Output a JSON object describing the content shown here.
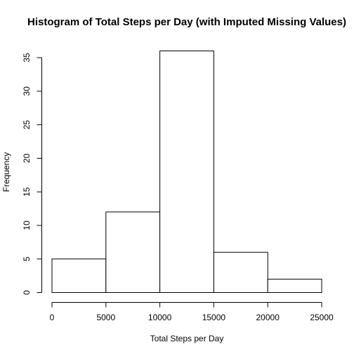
{
  "chart_data": {
    "type": "bar",
    "title": "Histogram of Total Steps per Day (with Imputed Missing Values)",
    "xlabel": "Total Steps per Day",
    "ylabel": "Frequency",
    "bins": [
      {
        "start": 0,
        "end": 5000,
        "count": 5
      },
      {
        "start": 5000,
        "end": 10000,
        "count": 12
      },
      {
        "start": 10000,
        "end": 15000,
        "count": 36
      },
      {
        "start": 15000,
        "end": 20000,
        "count": 6
      },
      {
        "start": 20000,
        "end": 25000,
        "count": 2
      }
    ],
    "xticks": [
      0,
      5000,
      10000,
      15000,
      20000,
      25000
    ],
    "yticks": [
      0,
      5,
      10,
      15,
      20,
      25,
      30,
      35
    ],
    "xlim": [
      0,
      25000
    ],
    "ylim": [
      0,
      36
    ],
    "grid": false,
    "colors": {
      "bar_fill": "#ffffff",
      "bar_stroke": "#000000"
    }
  }
}
